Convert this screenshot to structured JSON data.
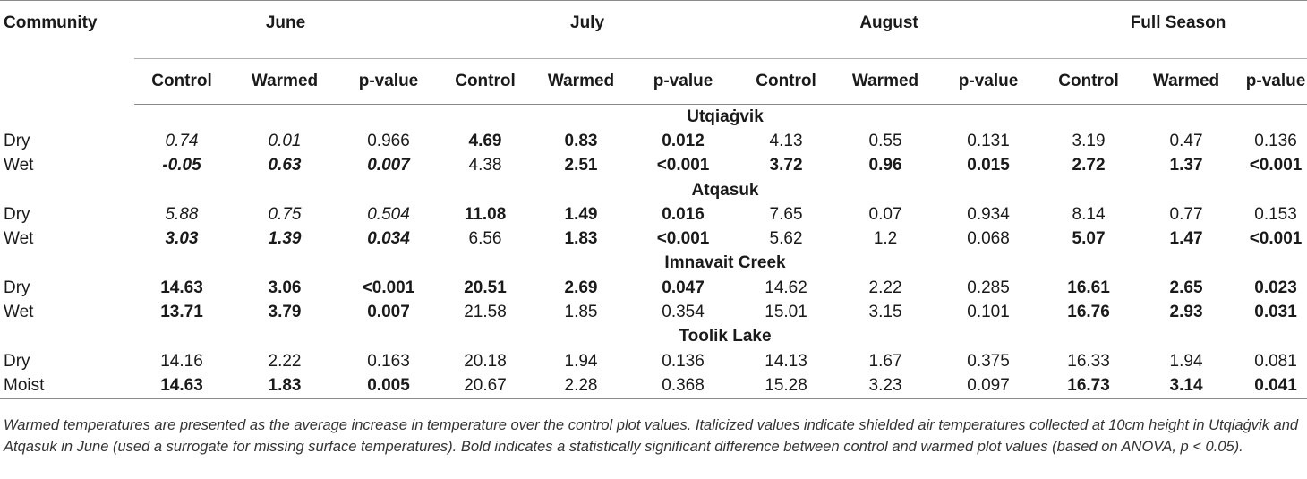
{
  "header": {
    "community": "Community",
    "groups": [
      "June",
      "July",
      "August",
      "Full Season"
    ],
    "subcols": [
      "Control",
      "Warmed",
      "p-value"
    ]
  },
  "sections": [
    {
      "site": "Utqiaġvik",
      "rows": [
        {
          "label": "Dry",
          "cells": [
            {
              "v": "0.74",
              "b": false,
              "i": true
            },
            {
              "v": "0.01",
              "b": false,
              "i": true
            },
            {
              "v": "0.966",
              "b": false,
              "i": false
            },
            {
              "v": "4.69",
              "b": true,
              "i": false
            },
            {
              "v": "0.83",
              "b": true,
              "i": false
            },
            {
              "v": "0.012",
              "b": true,
              "i": false
            },
            {
              "v": "4.13",
              "b": false,
              "i": false
            },
            {
              "v": "0.55",
              "b": false,
              "i": false
            },
            {
              "v": "0.131",
              "b": false,
              "i": false
            },
            {
              "v": "3.19",
              "b": false,
              "i": false
            },
            {
              "v": "0.47",
              "b": false,
              "i": false
            },
            {
              "v": "0.136",
              "b": false,
              "i": false
            }
          ]
        },
        {
          "label": "Wet",
          "cells": [
            {
              "v": "-0.05",
              "b": true,
              "i": true
            },
            {
              "v": "0.63",
              "b": true,
              "i": true
            },
            {
              "v": "0.007",
              "b": true,
              "i": true
            },
            {
              "v": "4.38",
              "b": false,
              "i": false
            },
            {
              "v": "2.51",
              "b": true,
              "i": false
            },
            {
              "v": "<0.001",
              "b": true,
              "i": false
            },
            {
              "v": "3.72",
              "b": true,
              "i": false
            },
            {
              "v": "0.96",
              "b": true,
              "i": false
            },
            {
              "v": "0.015",
              "b": true,
              "i": false
            },
            {
              "v": "2.72",
              "b": true,
              "i": false
            },
            {
              "v": "1.37",
              "b": true,
              "i": false
            },
            {
              "v": "<0.001",
              "b": true,
              "i": false
            }
          ]
        }
      ]
    },
    {
      "site": "Atqasuk",
      "rows": [
        {
          "label": "Dry",
          "cells": [
            {
              "v": "5.88",
              "b": false,
              "i": true
            },
            {
              "v": "0.75",
              "b": false,
              "i": true
            },
            {
              "v": "0.504",
              "b": false,
              "i": true
            },
            {
              "v": "11.08",
              "b": true,
              "i": false
            },
            {
              "v": "1.49",
              "b": true,
              "i": false
            },
            {
              "v": "0.016",
              "b": true,
              "i": false
            },
            {
              "v": "7.65",
              "b": false,
              "i": false
            },
            {
              "v": "0.07",
              "b": false,
              "i": false
            },
            {
              "v": "0.934",
              "b": false,
              "i": false
            },
            {
              "v": "8.14",
              "b": false,
              "i": false
            },
            {
              "v": "0.77",
              "b": false,
              "i": false
            },
            {
              "v": "0.153",
              "b": false,
              "i": false
            }
          ]
        },
        {
          "label": "Wet",
          "cells": [
            {
              "v": "3.03",
              "b": true,
              "i": true
            },
            {
              "v": "1.39",
              "b": true,
              "i": true
            },
            {
              "v": "0.034",
              "b": true,
              "i": true
            },
            {
              "v": "6.56",
              "b": false,
              "i": false
            },
            {
              "v": "1.83",
              "b": true,
              "i": false
            },
            {
              "v": "<0.001",
              "b": true,
              "i": false
            },
            {
              "v": "5.62",
              "b": false,
              "i": false
            },
            {
              "v": "1.2",
              "b": false,
              "i": false
            },
            {
              "v": "0.068",
              "b": false,
              "i": false
            },
            {
              "v": "5.07",
              "b": true,
              "i": false
            },
            {
              "v": "1.47",
              "b": true,
              "i": false
            },
            {
              "v": "<0.001",
              "b": true,
              "i": false
            }
          ]
        }
      ]
    },
    {
      "site": "Imnavait Creek",
      "rows": [
        {
          "label": "Dry",
          "cells": [
            {
              "v": "14.63",
              "b": true,
              "i": false
            },
            {
              "v": "3.06",
              "b": true,
              "i": false
            },
            {
              "v": "<0.001",
              "b": true,
              "i": false
            },
            {
              "v": "20.51",
              "b": true,
              "i": false
            },
            {
              "v": "2.69",
              "b": true,
              "i": false
            },
            {
              "v": "0.047",
              "b": true,
              "i": false
            },
            {
              "v": "14.62",
              "b": false,
              "i": false
            },
            {
              "v": "2.22",
              "b": false,
              "i": false
            },
            {
              "v": "0.285",
              "b": false,
              "i": false
            },
            {
              "v": "16.61",
              "b": true,
              "i": false
            },
            {
              "v": "2.65",
              "b": true,
              "i": false
            },
            {
              "v": "0.023",
              "b": true,
              "i": false
            }
          ]
        },
        {
          "label": "Wet",
          "cells": [
            {
              "v": "13.71",
              "b": true,
              "i": false
            },
            {
              "v": "3.79",
              "b": true,
              "i": false
            },
            {
              "v": "0.007",
              "b": true,
              "i": false
            },
            {
              "v": "21.58",
              "b": false,
              "i": false
            },
            {
              "v": "1.85",
              "b": false,
              "i": false
            },
            {
              "v": "0.354",
              "b": false,
              "i": false
            },
            {
              "v": "15.01",
              "b": false,
              "i": false
            },
            {
              "v": "3.15",
              "b": false,
              "i": false
            },
            {
              "v": "0.101",
              "b": false,
              "i": false
            },
            {
              "v": "16.76",
              "b": true,
              "i": false
            },
            {
              "v": "2.93",
              "b": true,
              "i": false
            },
            {
              "v": "0.031",
              "b": true,
              "i": false
            }
          ]
        }
      ]
    },
    {
      "site": "Toolik Lake",
      "rows": [
        {
          "label": "Dry",
          "cells": [
            {
              "v": "14.16",
              "b": false,
              "i": false
            },
            {
              "v": "2.22",
              "b": false,
              "i": false
            },
            {
              "v": "0.163",
              "b": false,
              "i": false
            },
            {
              "v": "20.18",
              "b": false,
              "i": false
            },
            {
              "v": "1.94",
              "b": false,
              "i": false
            },
            {
              "v": "0.136",
              "b": false,
              "i": false
            },
            {
              "v": "14.13",
              "b": false,
              "i": false
            },
            {
              "v": "1.67",
              "b": false,
              "i": false
            },
            {
              "v": "0.375",
              "b": false,
              "i": false
            },
            {
              "v": "16.33",
              "b": false,
              "i": false
            },
            {
              "v": "1.94",
              "b": false,
              "i": false
            },
            {
              "v": "0.081",
              "b": false,
              "i": false
            }
          ]
        },
        {
          "label": "Moist",
          "cells": [
            {
              "v": "14.63",
              "b": true,
              "i": false
            },
            {
              "v": "1.83",
              "b": true,
              "i": false
            },
            {
              "v": "0.005",
              "b": true,
              "i": false
            },
            {
              "v": "20.67",
              "b": false,
              "i": false
            },
            {
              "v": "2.28",
              "b": false,
              "i": false
            },
            {
              "v": "0.368",
              "b": false,
              "i": false
            },
            {
              "v": "15.28",
              "b": false,
              "i": false
            },
            {
              "v": "3.23",
              "b": false,
              "i": false
            },
            {
              "v": "0.097",
              "b": false,
              "i": false
            },
            {
              "v": "16.73",
              "b": true,
              "i": false
            },
            {
              "v": "3.14",
              "b": true,
              "i": false
            },
            {
              "v": "0.041",
              "b": true,
              "i": false
            }
          ]
        }
      ]
    }
  ],
  "footnote": "Warmed temperatures are presented as the average increase in temperature over the control plot values. Italicized values indicate shielded air temperatures collected at 10cm height in Utqiaġvik and Atqasuk in June (used a surrogate for missing surface temperatures). Bold indicates a statistically significant difference between control and warmed plot values (based on ANOVA, p < 0.05)."
}
